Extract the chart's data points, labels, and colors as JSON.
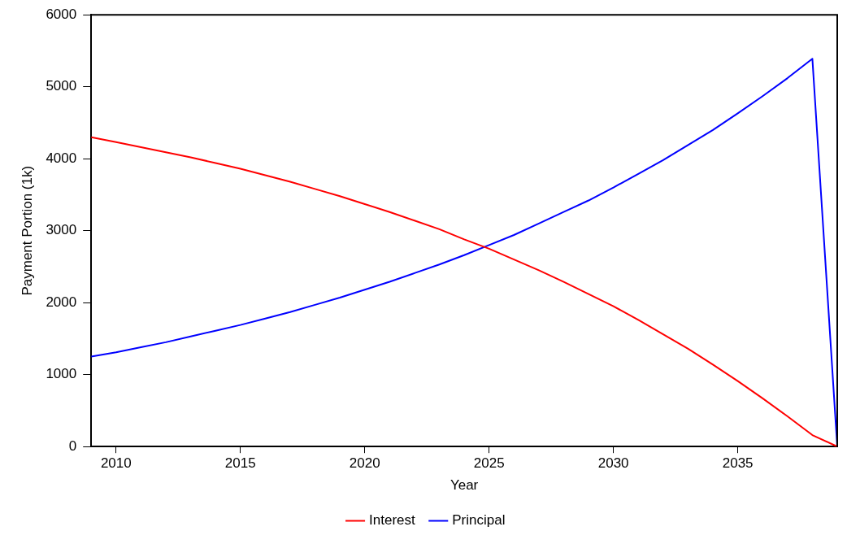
{
  "chart_data": {
    "type": "line",
    "xlabel": "Year",
    "ylabel": "Payment Portion (1k)",
    "x": [
      2009,
      2010,
      2011,
      2012,
      2013,
      2014,
      2015,
      2016,
      2017,
      2018,
      2019,
      2020,
      2021,
      2022,
      2023,
      2024,
      2025,
      2026,
      2027,
      2028,
      2029,
      2030,
      2031,
      2032,
      2033,
      2034,
      2035,
      2036,
      2037,
      2038,
      2039
    ],
    "series": [
      {
        "name": "Interest",
        "color": "#ff0000",
        "values": [
          4300,
          4230,
          4160,
          4090,
          4020,
          3940,
          3860,
          3770,
          3680,
          3580,
          3480,
          3370,
          3260,
          3140,
          3020,
          2880,
          2750,
          2600,
          2450,
          2290,
          2120,
          1950,
          1760,
          1560,
          1360,
          1140,
          910,
          670,
          420,
          160,
          0
        ]
      },
      {
        "name": "Principal",
        "color": "#0000ff",
        "values": [
          1250,
          1310,
          1380,
          1450,
          1530,
          1610,
          1690,
          1780,
          1870,
          1970,
          2070,
          2180,
          2290,
          2410,
          2530,
          2660,
          2800,
          2940,
          3100,
          3260,
          3420,
          3600,
          3790,
          3980,
          4190,
          4400,
          4630,
          4870,
          5120,
          5390,
          0
        ]
      }
    ],
    "xlim": [
      2009,
      2039
    ],
    "xticks": [
      2010,
      2015,
      2020,
      2025,
      2030,
      2035
    ],
    "ylim": [
      0,
      6000
    ],
    "yticks": [
      0,
      1000,
      2000,
      3000,
      4000,
      5000,
      6000
    ],
    "grid": false,
    "legend": "bottom",
    "marker": "none",
    "line_style": "solid"
  }
}
